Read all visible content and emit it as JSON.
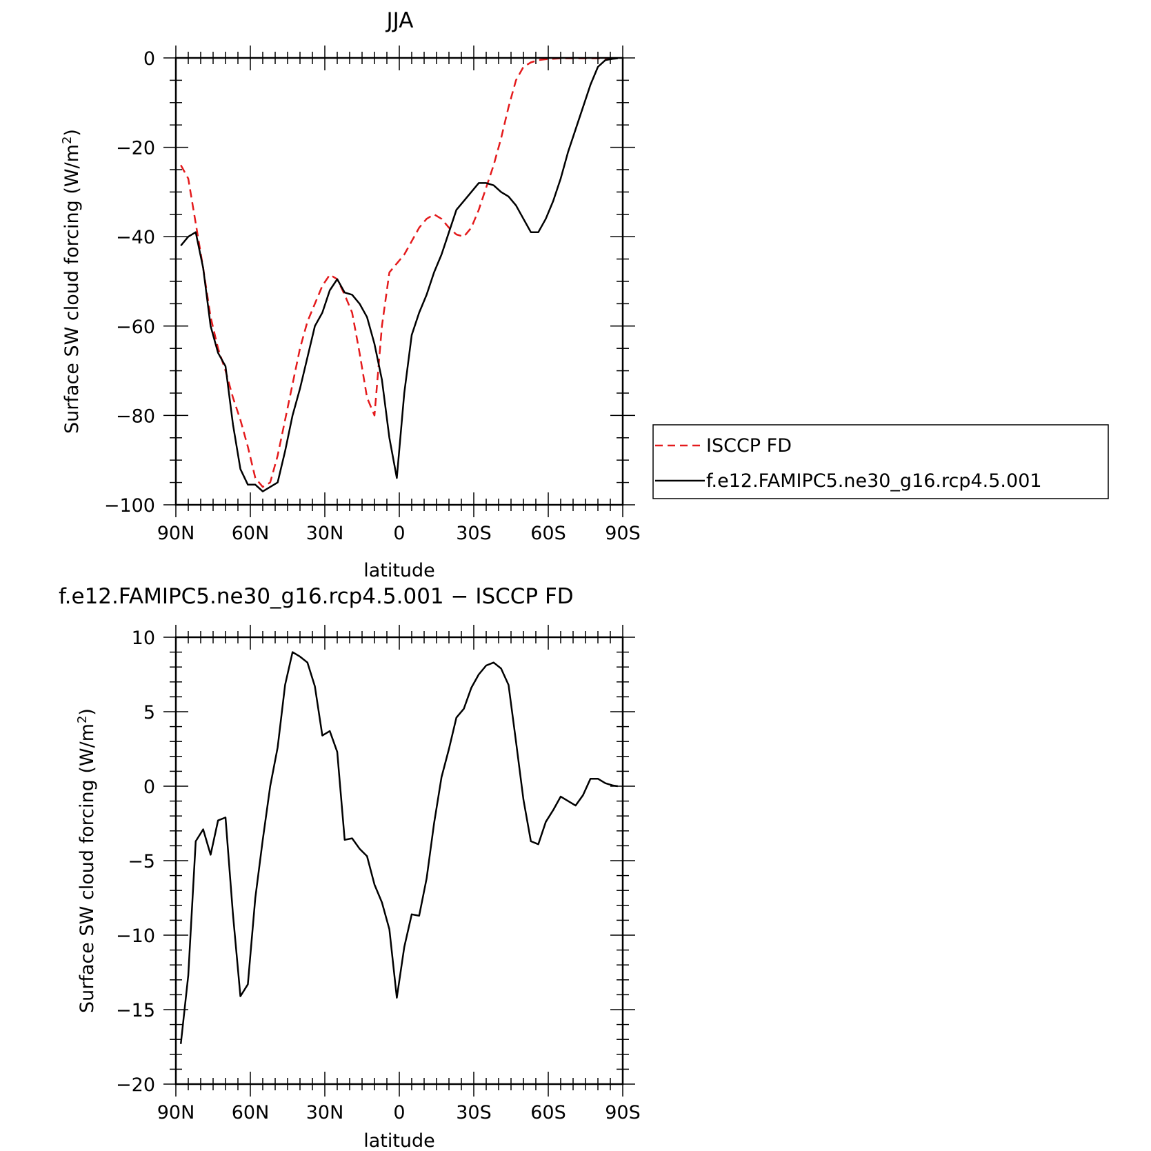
{
  "chart_data": [
    {
      "type": "line",
      "title": "JJA",
      "xlabel": "latitude",
      "ylabel_main": "Surface SW cloud forcing (W/m",
      "ylabel_sup": "2",
      "ylabel_close": ")",
      "xlim": [
        90,
        -90
      ],
      "ylim": [
        -100,
        0
      ],
      "xticks": [
        {
          "value": 90,
          "label": "90N"
        },
        {
          "value": 60,
          "label": "60N"
        },
        {
          "value": 30,
          "label": "30N"
        },
        {
          "value": 0,
          "label": "0"
        },
        {
          "value": -30,
          "label": "30S"
        },
        {
          "value": -60,
          "label": "60S"
        },
        {
          "value": -90,
          "label": "90S"
        }
      ],
      "yticks": [
        {
          "value": 0,
          "label": "0"
        },
        {
          "value": -20,
          "label": "−20"
        },
        {
          "value": -40,
          "label": "−40"
        },
        {
          "value": -60,
          "label": "−60"
        },
        {
          "value": -80,
          "label": "−80"
        },
        {
          "value": -100,
          "label": "−100"
        }
      ],
      "series": [
        {
          "name": "ISCCP FD",
          "color": "#e41a1c",
          "dash": "dashed",
          "x": [
            88,
            85,
            82,
            79,
            76,
            73,
            70,
            67,
            64,
            61,
            58,
            55,
            52,
            49,
            46,
            43,
            40,
            37,
            34,
            31,
            28,
            25,
            22,
            19,
            16,
            13,
            10,
            7,
            4,
            1,
            -2,
            -5,
            -8,
            -11,
            -14,
            -17,
            -20,
            -23,
            -26,
            -29,
            -32,
            -35,
            -38,
            -41,
            -44,
            -47,
            -50,
            -53,
            -56,
            -59,
            -62,
            -65,
            -68,
            -71,
            -74,
            -77,
            -80,
            -83,
            -86,
            -88
          ],
          "y": [
            -24,
            -27,
            -37,
            -47,
            -58,
            -65,
            -70,
            -76,
            -81,
            -87,
            -94,
            -96,
            -95,
            -89,
            -81,
            -73,
            -65,
            -59,
            -55,
            -51,
            -48.5,
            -49.5,
            -53,
            -57,
            -66,
            -76,
            -80,
            -60,
            -48,
            -46,
            -44,
            -41,
            -38,
            -36,
            -35,
            -36,
            -38,
            -39.5,
            -40,
            -38,
            -34,
            -29,
            -24,
            -18,
            -11,
            -5,
            -2,
            -1,
            -0.5,
            -0.3,
            -0.2,
            -0.1,
            -0.1,
            -0.1,
            -0.1,
            -0.1,
            -0.1,
            -0.1,
            -0.1,
            -0.1
          ]
        },
        {
          "name": "f.e12.FAMIPC5.ne30_g16.rcp4.5.001",
          "color": "#000000",
          "dash": "solid",
          "x": [
            88,
            85,
            82,
            79,
            76,
            73,
            70,
            67,
            64,
            61,
            58,
            55,
            52,
            49,
            46,
            43,
            40,
            37,
            34,
            31,
            28,
            25,
            22,
            19,
            16,
            13,
            10,
            7,
            4,
            1,
            -2,
            -5,
            -8,
            -11,
            -14,
            -17,
            -20,
            -23,
            -26,
            -29,
            -32,
            -35,
            -38,
            -41,
            -44,
            -47,
            -50,
            -53,
            -56,
            -59,
            -62,
            -65,
            -68,
            -71,
            -74,
            -77,
            -80,
            -83,
            -86,
            -88
          ],
          "y": [
            -42,
            -40,
            -39,
            -47,
            -60,
            -66,
            -69,
            -82,
            -92,
            -95.5,
            -95.5,
            -97,
            -96,
            -95,
            -88,
            -80,
            -74,
            -67,
            -60,
            -57,
            -52,
            -49.5,
            -52.5,
            -53,
            -55,
            -58,
            -64,
            -72,
            -85,
            -94,
            -75,
            -62,
            -57,
            -53,
            -48,
            -44,
            -39,
            -34,
            -32,
            -30,
            -28,
            -28,
            -28.5,
            -30,
            -31,
            -33,
            -36,
            -39,
            -39,
            -36,
            -32,
            -27,
            -21,
            -16,
            -11,
            -6,
            -2,
            -0.5,
            -0.2,
            -0.1
          ]
        }
      ]
    },
    {
      "type": "line",
      "title": "f.e12.FAMIPC5.ne30_g16.rcp4.5.001 − ISCCP FD",
      "xlabel": "latitude",
      "ylabel_main": "Surface SW cloud forcing (W/m",
      "ylabel_sup": "2",
      "ylabel_close": ")",
      "xlim": [
        90,
        -90
      ],
      "ylim": [
        -20,
        10
      ],
      "xticks": [
        {
          "value": 90,
          "label": "90N"
        },
        {
          "value": 60,
          "label": "60N"
        },
        {
          "value": 30,
          "label": "30N"
        },
        {
          "value": 0,
          "label": "0"
        },
        {
          "value": -30,
          "label": "30S"
        },
        {
          "value": -60,
          "label": "60S"
        },
        {
          "value": -90,
          "label": "90S"
        }
      ],
      "yticks": [
        {
          "value": 10,
          "label": "10"
        },
        {
          "value": 5,
          "label": "5"
        },
        {
          "value": 0,
          "label": "0"
        },
        {
          "value": -5,
          "label": "−5"
        },
        {
          "value": -10,
          "label": "−10"
        },
        {
          "value": -15,
          "label": "−15"
        },
        {
          "value": -20,
          "label": "−20"
        }
      ],
      "series": [
        {
          "name": "",
          "color": "#000000",
          "dash": "solid",
          "x": [
            88,
            85,
            82,
            79,
            76,
            73,
            70,
            67,
            64,
            61,
            58,
            55,
            52,
            49,
            46,
            43,
            40,
            37,
            34,
            31,
            28,
            25,
            22,
            19,
            16,
            13,
            10,
            7,
            4,
            1,
            -2,
            -5,
            -8,
            -11,
            -14,
            -17,
            -20,
            -23,
            -26,
            -29,
            -32,
            -35,
            -38,
            -41,
            -44,
            -47,
            -50,
            -53,
            -56,
            -59,
            -62,
            -65,
            -68,
            -71,
            -74,
            -77,
            -80,
            -83,
            -86,
            -88
          ],
          "y": [
            -17.3,
            -12.7,
            -3.7,
            -2.9,
            -4.6,
            -2.3,
            -2.1,
            -8.6,
            -14.1,
            -13.3,
            -7.5,
            -3.6,
            0,
            2.6,
            6.8,
            9,
            8.7,
            8.3,
            6.7,
            3.4,
            3.7,
            2.3,
            -3.6,
            -3.5,
            -4.2,
            -4.7,
            -6.6,
            -7.8,
            -9.6,
            -14.2,
            -10.8,
            -8.6,
            -8.7,
            -6.2,
            -2.5,
            0.6,
            2.5,
            4.6,
            5.2,
            6.6,
            7.5,
            8.1,
            8.3,
            7.9,
            6.8,
            3,
            -0.9,
            -3.7,
            -3.9,
            -2.4,
            -1.6,
            -0.7,
            -1,
            -1.3,
            -0.6,
            0.5,
            0.5,
            0.2,
            0.05,
            0
          ]
        }
      ]
    }
  ]
}
